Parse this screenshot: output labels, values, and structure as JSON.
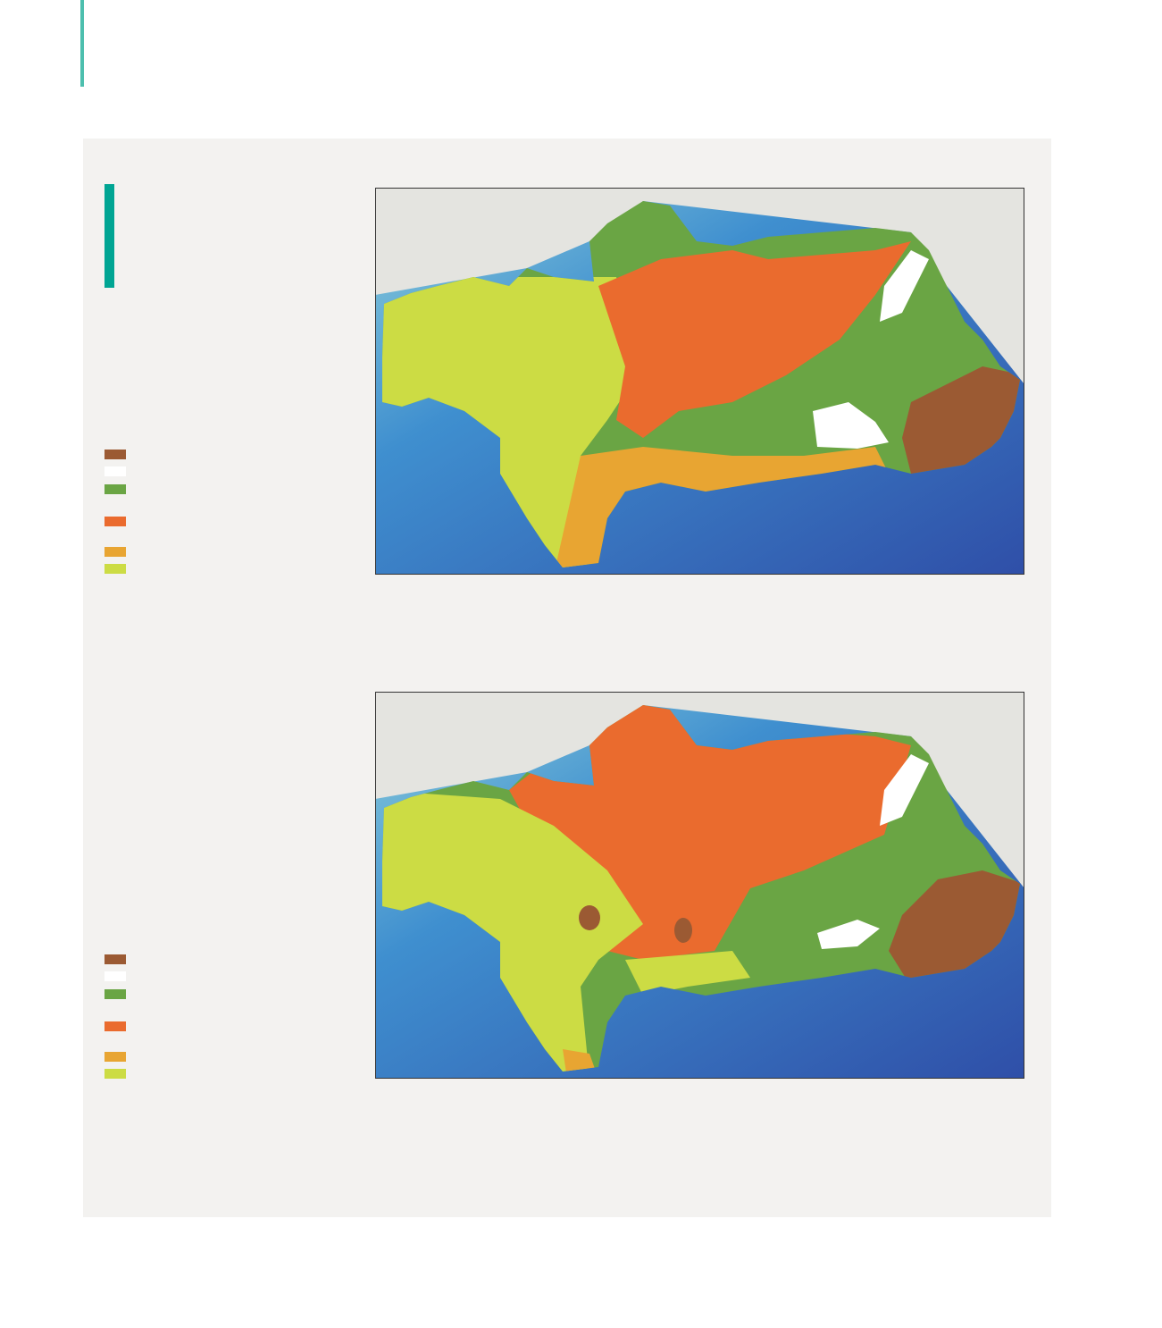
{
  "maps": [
    {
      "legend": [
        {
          "color": "#9b5a33"
        },
        {
          "color": "#ffffff"
        },
        {
          "color": "#6aa544"
        },
        {
          "color": "#ea6b2e"
        },
        {
          "color": "#e8a532"
        },
        {
          "color": "#ccdc44"
        }
      ]
    },
    {
      "legend": [
        {
          "color": "#9b5a33"
        },
        {
          "color": "#ffffff"
        },
        {
          "color": "#6aa544"
        },
        {
          "color": "#ea6b2e"
        },
        {
          "color": "#e8a532"
        },
        {
          "color": "#ccdc44"
        }
      ]
    }
  ]
}
